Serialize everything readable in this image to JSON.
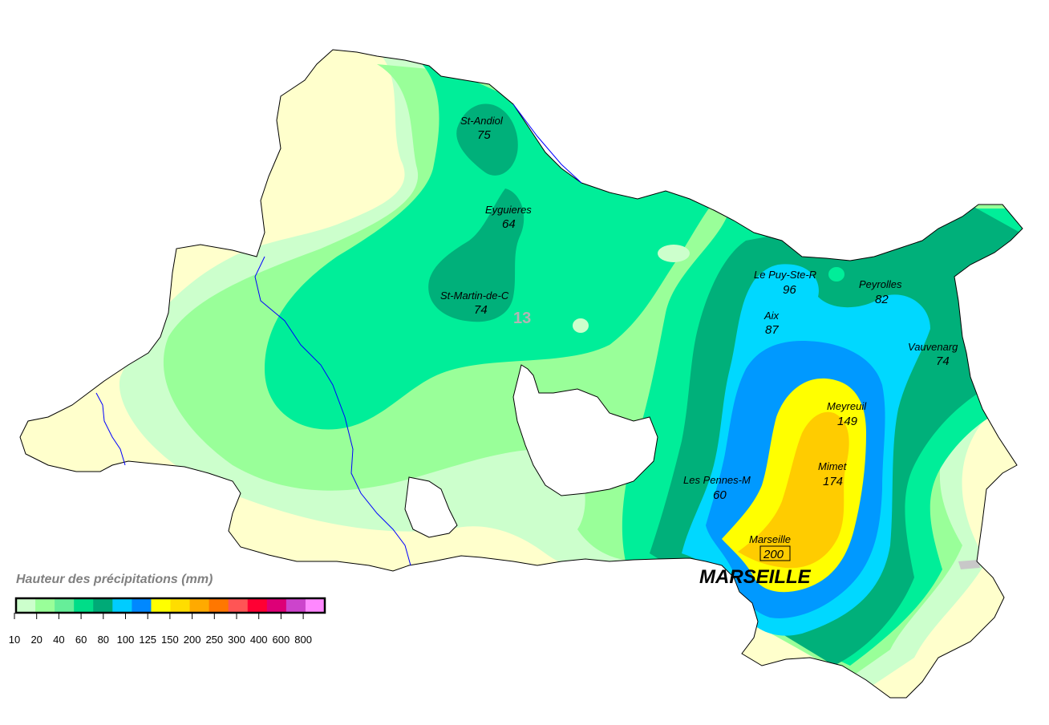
{
  "department_number": "13",
  "city_label": "MARSEILLE",
  "legend": {
    "title": "Hauteur des précipitations (mm)",
    "ticks": [
      "10",
      "20",
      "40",
      "60",
      "80",
      "100",
      "125",
      "150",
      "200",
      "250",
      "300",
      "400",
      "600",
      "800"
    ],
    "colors": [
      "#ccffcc",
      "#99ff99",
      "#66ee99",
      "#00dd88",
      "#00aa77",
      "#00ccff",
      "#0088ff",
      "#ffff00",
      "#ffdd00",
      "#ffaa00",
      "#ff7700",
      "#ff5555",
      "#ff0033",
      "#dd0077",
      "#cc44cc",
      "#ff88ff"
    ]
  },
  "stations": [
    {
      "name": "St-Andiol",
      "value": "75"
    },
    {
      "name": "Eyguieres",
      "value": "64"
    },
    {
      "name": "St-Martin-de-C",
      "value": "74"
    },
    {
      "name": "Le Puy-Ste-R",
      "value": "96"
    },
    {
      "name": "Peyrolles",
      "value": "82"
    },
    {
      "name": "Aix",
      "value": "87"
    },
    {
      "name": "Vauvenarg",
      "value": "74"
    },
    {
      "name": "Meyreuil",
      "value": "149"
    },
    {
      "name": "Mimet",
      "value": "174"
    },
    {
      "name": "Les Pennes-M",
      "value": "60"
    },
    {
      "name": "Marseille",
      "value": "200"
    }
  ],
  "zone_colors": {
    "c10": "#ffffcc",
    "c20": "#ccffcc",
    "c40": "#99ff99",
    "c60": "#00ee99",
    "c80": "#00b07a",
    "c100": "#00d8ff",
    "c125": "#0099ff",
    "c150": "#ffff00",
    "c200": "#ffcc00",
    "outline": "#000000",
    "river": "#0000ff"
  }
}
